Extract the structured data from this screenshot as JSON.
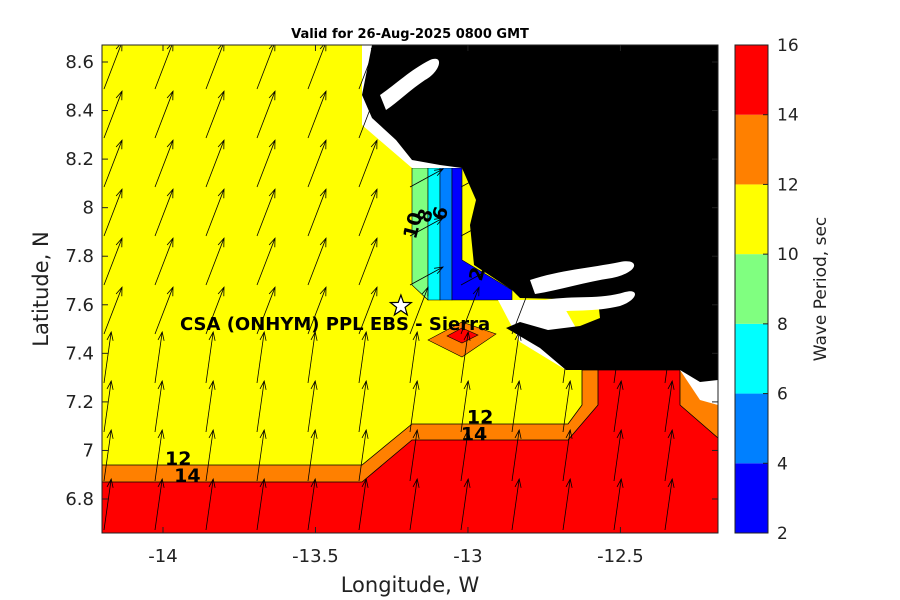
{
  "chart_data": {
    "type": "heatmap",
    "title": "Valid for 26-Aug-2025 0800 GMT",
    "xlabel": "Longitude, W",
    "ylabel": "Latitude, N",
    "xlim": [
      -14.2,
      -12.18
    ],
    "ylim": [
      6.66,
      8.67
    ],
    "x_ticks": [
      -14,
      -13.5,
      -13,
      -12.5
    ],
    "x_tick_labels": [
      "-14",
      "-13.5",
      "-13",
      "-12.5"
    ],
    "y_ticks": [
      6.8,
      7,
      7.2,
      7.4,
      7.6,
      7.8,
      8,
      8.2,
      8.4,
      8.6
    ],
    "y_tick_labels": [
      "6.8",
      "7",
      "7.2",
      "7.4",
      "7.6",
      "7.8",
      "8",
      "8.2",
      "8.4",
      "8.6"
    ],
    "colorbar": {
      "label": "Wave Period, sec",
      "levels": [
        2,
        4,
        6,
        8,
        10,
        12,
        14,
        16
      ],
      "tick_labels": [
        "2",
        "4",
        "6",
        "8",
        "10",
        "12",
        "14",
        "16"
      ],
      "colors": [
        "#0000ff",
        "#0080ff",
        "#00ffff",
        "#80ff80",
        "#ffff00",
        "#ff8000",
        "#ff0000"
      ]
    },
    "contour_labels": [
      {
        "text": "12",
        "lon": -13.95,
        "lat": 6.94
      },
      {
        "text": "14",
        "lon": -13.92,
        "lat": 6.87
      },
      {
        "text": "12",
        "lon": -12.96,
        "lat": 7.11
      },
      {
        "text": "14",
        "lon": -12.98,
        "lat": 7.04
      },
      {
        "text": "10",
        "lon": -13.16,
        "lat": 7.92
      },
      {
        "text": "8",
        "lon": -13.12,
        "lat": 7.96
      },
      {
        "text": "6",
        "lon": -13.07,
        "lat": 7.97
      },
      {
        "text": "2",
        "lon": -12.95,
        "lat": 7.72
      }
    ],
    "site": {
      "label": "CSA (ONHYM) PPL EBS - Sierra",
      "lon": -13.22,
      "lat": 7.595
    },
    "land_color": "#000000",
    "vector_field": "wave direction arrows (black)"
  }
}
